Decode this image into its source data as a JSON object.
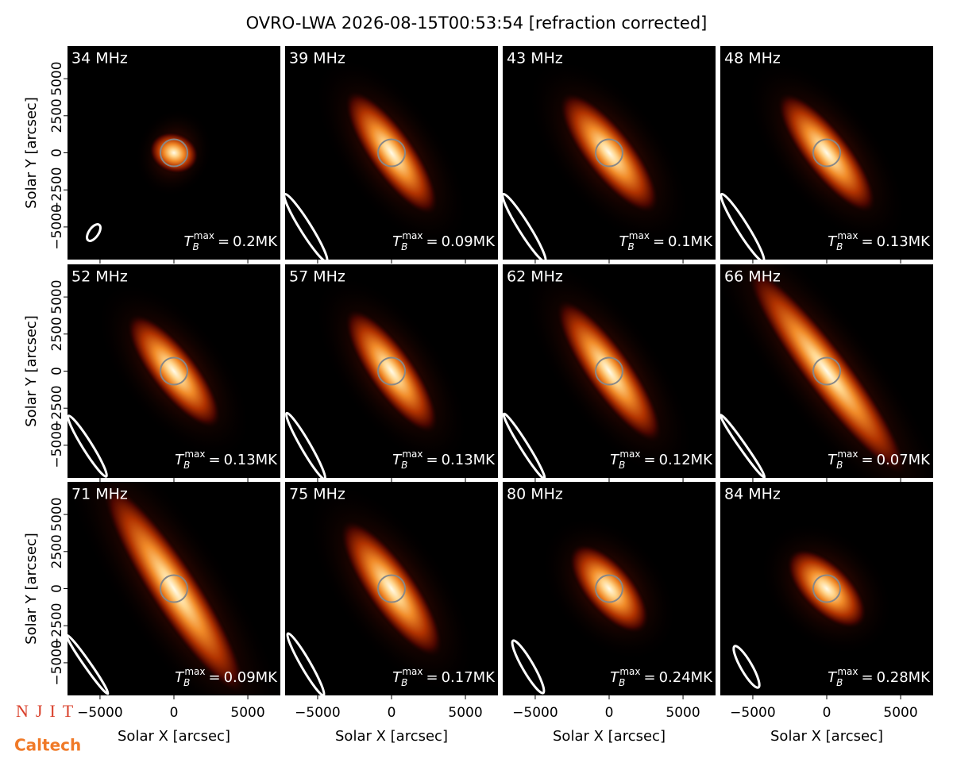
{
  "title": "OVRO-LWA 2026-08-15T00:53:54 [refraction corrected]",
  "xlabel": "Solar X [arcsec]",
  "ylabel": "Solar Y [arcsec]",
  "xlim": [
    -7200,
    7200
  ],
  "ylim": [
    -7200,
    7200
  ],
  "xticks": [
    {
      "value": -5000,
      "label": "−5000"
    },
    0,
    5000
  ],
  "yticks": [
    {
      "value": -5000,
      "label": "−5000"
    },
    {
      "value": -2500,
      "label": "−2500"
    },
    0,
    2500,
    5000
  ],
  "tmax_symbol": {
    "base": "T",
    "sub": "B",
    "sup": "max",
    "equals": "="
  },
  "panels": [
    {
      "freq": "34 MHz",
      "tmax": "0.2MK"
    },
    {
      "freq": "39 MHz",
      "tmax": "0.09MK"
    },
    {
      "freq": "43 MHz",
      "tmax": "0.1MK"
    },
    {
      "freq": "48 MHz",
      "tmax": "0.13MK"
    },
    {
      "freq": "52 MHz",
      "tmax": "0.13MK"
    },
    {
      "freq": "57 MHz",
      "tmax": "0.13MK"
    },
    {
      "freq": "62 MHz",
      "tmax": "0.12MK"
    },
    {
      "freq": "66 MHz",
      "tmax": "0.07MK"
    },
    {
      "freq": "71 MHz",
      "tmax": "0.09MK"
    },
    {
      "freq": "75 MHz",
      "tmax": "0.17MK"
    },
    {
      "freq": "80 MHz",
      "tmax": "0.24MK"
    },
    {
      "freq": "84 MHz",
      "tmax": "0.28MK"
    }
  ],
  "logos": {
    "njit": "NJIT",
    "caltech": "Caltech"
  }
}
